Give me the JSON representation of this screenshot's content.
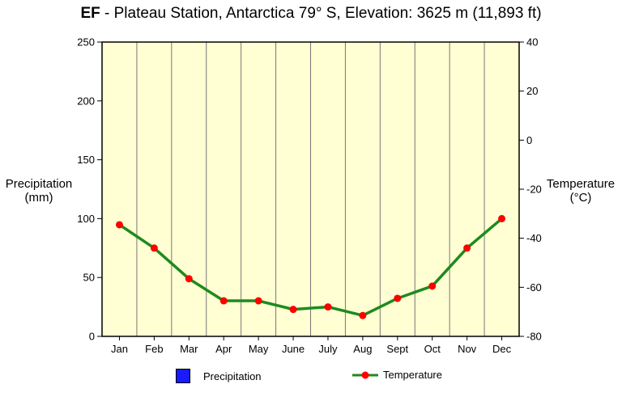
{
  "title": {
    "code": "EF",
    "separator": " - ",
    "text": "Plateau Station, Antarctica 79° S, Elevation: 3625 m (11,893 ft)"
  },
  "chart_data": {
    "type": "line",
    "title": "EF - Plateau Station, Antarctica 79° S, Elevation: 3625 m (11,893 ft)",
    "categories": [
      "Jan",
      "Feb",
      "Mar",
      "Apr",
      "May",
      "June",
      "July",
      "Aug",
      "Sept",
      "Oct",
      "Nov",
      "Dec"
    ],
    "y_left": {
      "label_line1": "Precipitation",
      "label_line2": "(mm)",
      "range": [
        0,
        250
      ],
      "ticks": [
        0,
        50,
        100,
        150,
        200,
        250
      ]
    },
    "y_right": {
      "label_line1": "Temperature",
      "label_line2": "(°C)",
      "range": [
        -80,
        40
      ],
      "ticks": [
        -80,
        -60,
        -40,
        -20,
        0,
        20,
        40
      ]
    },
    "series": [
      {
        "name": "Precipitation",
        "axis": "left",
        "color": "#1a1aff",
        "values": [
          0,
          0,
          0,
          0,
          0,
          0,
          0,
          0,
          0,
          0,
          0,
          0
        ]
      },
      {
        "name": "Temperature",
        "axis": "right",
        "line_color": "#1e8a1e",
        "marker_color": "#ff0000",
        "values": [
          -34.5,
          -44,
          -56.5,
          -65.5,
          -65.5,
          -69,
          -68,
          -71.5,
          -64.5,
          -59.5,
          -44,
          -32
        ]
      }
    ],
    "legend": [
      "Precipitation",
      "Temperature"
    ],
    "legend_position": "bottom",
    "grid": "vertical",
    "plot_background": "#ffffd3"
  }
}
